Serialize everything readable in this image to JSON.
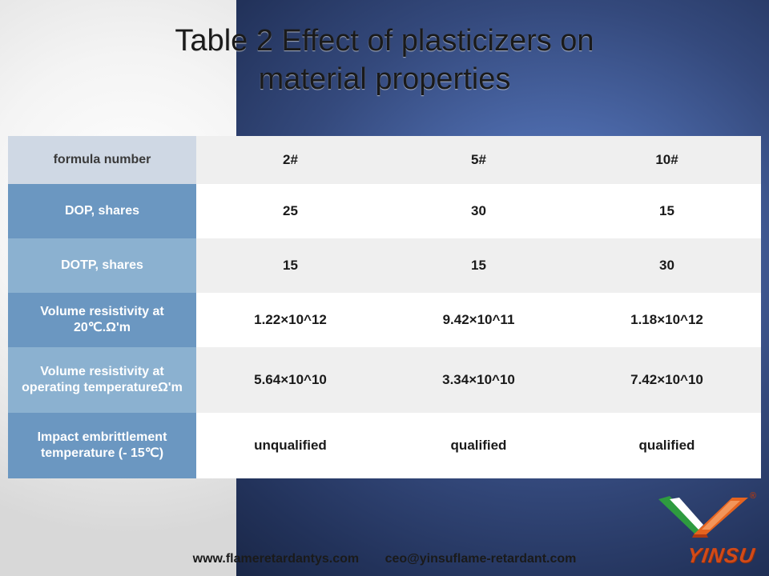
{
  "title_line1": "Table 2 Effect of plasticizers on",
  "title_line2": "material properties",
  "watermark": "YINSU",
  "table": {
    "header_row_color_light": "#cfd8e4",
    "header_row_color_dark": "#6b97c1",
    "cell_bg_even": "#efefef",
    "cell_bg_odd": "#ffffff",
    "label_bg_even": "#8bb1d0",
    "label_bg_odd": "#6b97c1",
    "rows": [
      {
        "label": "formula number",
        "cells": [
          "2#",
          "5#",
          "10#"
        ],
        "height": "r-head"
      },
      {
        "label": "DOP, shares",
        "cells": [
          "25",
          "30",
          "15"
        ],
        "height": ""
      },
      {
        "label": "DOTP, shares",
        "cells": [
          "15",
          "15",
          "30"
        ],
        "height": ""
      },
      {
        "label": "Volume resistivity at 20℃.Ω'm",
        "cells": [
          "1.22×10^12",
          "9.42×10^11",
          "1.18×10^12"
        ],
        "height": ""
      },
      {
        "label": "Volume resistivity at operating temperatureΩ'm",
        "cells": [
          "5.64×10^10",
          "3.34×10^10",
          "7.42×10^10"
        ],
        "height": "r-tall"
      },
      {
        "label": "Impact embrittlement temperature (- 15℃)",
        "cells": [
          "unqualified",
          "qualified",
          "qualified"
        ],
        "height": "r-tall"
      }
    ]
  },
  "footer": {
    "url": "www.flameretardantys.com",
    "email": "ceo@yinsuflame-retardant.com"
  },
  "logo": {
    "text": "YINSU",
    "reg": "®",
    "green": "#2e9b3f",
    "orange": "#e6641f",
    "dark": "#b03a12"
  }
}
